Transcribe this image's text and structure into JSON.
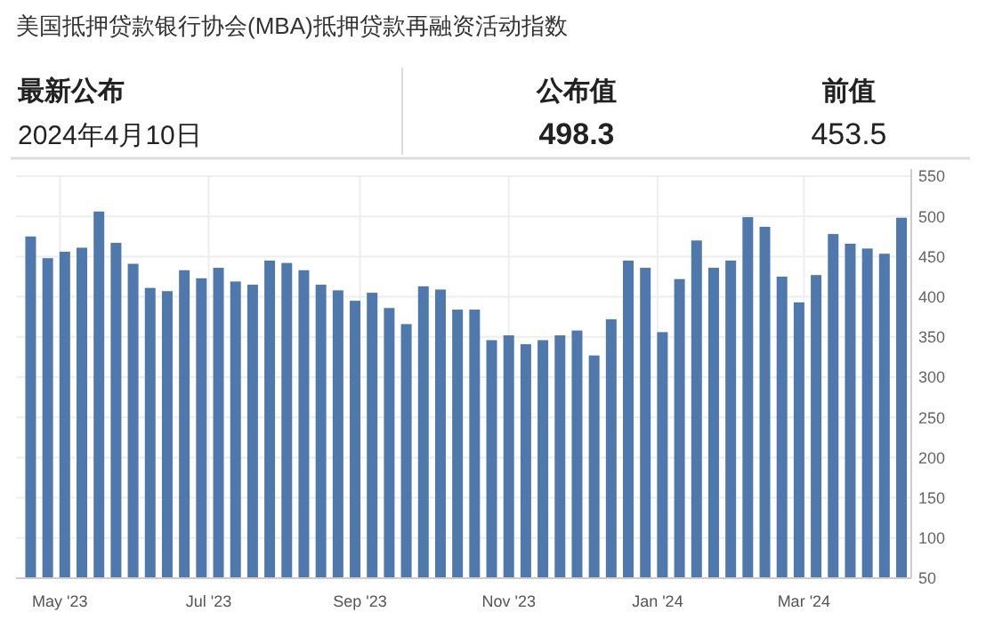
{
  "chart_data": {
    "type": "bar",
    "title": "美国抵押贷款银行协会(MBA)抵押贷款再融资活动指数",
    "annotations": [
      "最新公布",
      "2024年4月10日",
      "公布值",
      "498.3",
      "前值",
      "453.5"
    ],
    "x": [
      "2023-04-19",
      "2023-04-26",
      "2023-05-03",
      "2023-05-10",
      "2023-05-17",
      "2023-05-24",
      "2023-05-31",
      "2023-06-07",
      "2023-06-14",
      "2023-06-21",
      "2023-06-28",
      "2023-07-05",
      "2023-07-12",
      "2023-07-19",
      "2023-07-26",
      "2023-08-02",
      "2023-08-09",
      "2023-08-16",
      "2023-08-23",
      "2023-08-30",
      "2023-09-06",
      "2023-09-13",
      "2023-09-20",
      "2023-09-27",
      "2023-10-04",
      "2023-10-11",
      "2023-10-18",
      "2023-10-25",
      "2023-11-01",
      "2023-11-08",
      "2023-11-15",
      "2023-11-22",
      "2023-11-29",
      "2023-12-06",
      "2023-12-13",
      "2023-12-20",
      "2023-12-27",
      "2024-01-03",
      "2024-01-10",
      "2024-01-17",
      "2024-01-24",
      "2024-01-31",
      "2024-02-07",
      "2024-02-14",
      "2024-02-21",
      "2024-02-28",
      "2024-03-06",
      "2024-03-13",
      "2024-03-20",
      "2024-03-27",
      "2024-04-03",
      "2024-04-10"
    ],
    "values": [
      475,
      448,
      456,
      461,
      506,
      467,
      441,
      411,
      407,
      433,
      423,
      436,
      419,
      415,
      445,
      442,
      433,
      415,
      408,
      395,
      405,
      386,
      366,
      413,
      409,
      384,
      384,
      346,
      352,
      341,
      346,
      352,
      358,
      327,
      372,
      445,
      436,
      356,
      422,
      470,
      436,
      445,
      499,
      487,
      425,
      393,
      427,
      478,
      466,
      460,
      453.5,
      498.3
    ],
    "color": "#4f79ac",
    "xlim": [
      "2023-04-13",
      "2024-04-14"
    ],
    "xticks": [
      {
        "value": "2023-05-01",
        "label": "May '23"
      },
      {
        "value": "2023-07-01",
        "label": "Jul '23"
      },
      {
        "value": "2023-09-01",
        "label": "Sep '23"
      },
      {
        "value": "2023-11-01",
        "label": "Nov '23"
      },
      {
        "value": "2024-01-01",
        "label": "Jan '24"
      },
      {
        "value": "2024-03-01",
        "label": "Mar '24"
      }
    ],
    "ylim": [
      50,
      550
    ],
    "yticks": [
      50,
      100,
      150,
      200,
      250,
      300,
      350,
      400,
      450,
      500,
      550
    ],
    "grid": true
  }
}
